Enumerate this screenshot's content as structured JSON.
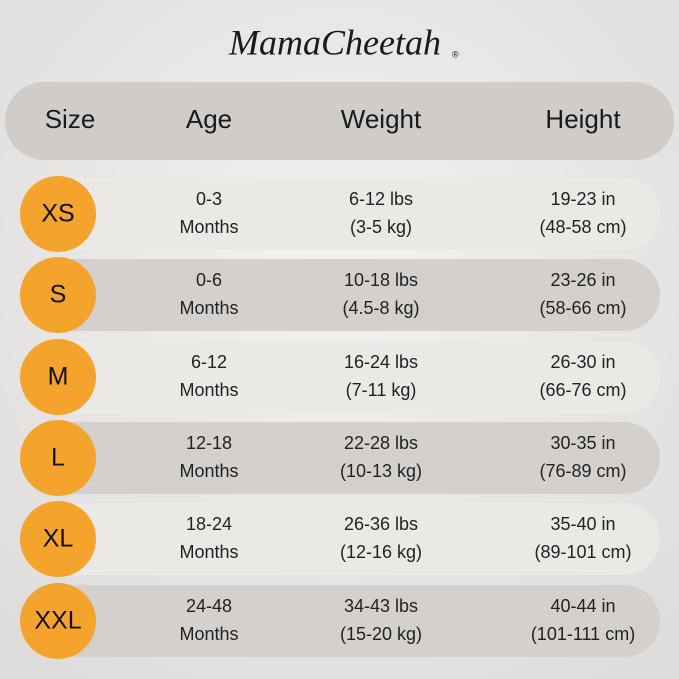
{
  "brand": {
    "name": "MamaCheetah",
    "mark": "®"
  },
  "header": [
    "Size",
    "Age",
    "Weight",
    "Height"
  ],
  "rows": [
    {
      "size": "XS",
      "age": [
        "0-3",
        "Months"
      ],
      "weight": [
        "6-12 lbs",
        "(3-5 kg)"
      ],
      "height": [
        "19-23 in",
        "(48-58 cm)"
      ]
    },
    {
      "size": "S",
      "age": [
        "0-6",
        "Months"
      ],
      "weight": [
        "10-18 lbs",
        "(4.5-8 kg)"
      ],
      "height": [
        "23-26 in",
        "(58-66 cm)"
      ]
    },
    {
      "size": "M",
      "age": [
        "6-12",
        "Months"
      ],
      "weight": [
        "16-24 lbs",
        "(7-11 kg)"
      ],
      "height": [
        "26-30 in",
        "(66-76 cm)"
      ]
    },
    {
      "size": "L",
      "age": [
        "12-18",
        "Months"
      ],
      "weight": [
        "22-28 lbs",
        "(10-13 kg)"
      ],
      "height": [
        "30-35 in",
        "(76-89 cm)"
      ]
    },
    {
      "size": "XL",
      "age": [
        "18-24",
        "Months"
      ],
      "weight": [
        "26-36 lbs",
        "(12-16 kg)"
      ],
      "height": [
        "35-40 in",
        "(89-101 cm)"
      ]
    },
    {
      "size": "XXL",
      "age": [
        "24-48",
        "Months"
      ],
      "weight": [
        "34-43 lbs",
        "(15-20 kg)"
      ],
      "height": [
        "40-44 in",
        "(101-111 cm)"
      ]
    }
  ]
}
